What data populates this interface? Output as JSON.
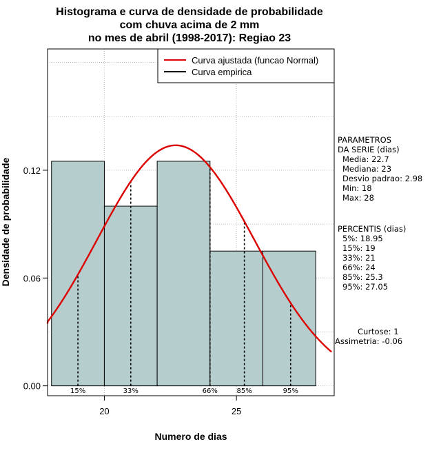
{
  "chart_data": {
    "type": "histogram",
    "title": [
      "Histograma e curva de densidade de probabilidade",
      "com chuva acima de 2 mm",
      "no mes de abril (1998-2017): Regiao 23"
    ],
    "xlabel": "Numero de dias",
    "ylabel": "Densidade de probabilidade",
    "xlim": [
      17.85,
      28.7
    ],
    "ylim": [
      -0.0055,
      0.1875
    ],
    "xticks": [
      20,
      25
    ],
    "yticks": [
      0.0,
      0.06,
      0.12
    ],
    "ytick_labels": [
      "0.00",
      "0.06",
      "0.12"
    ],
    "grid": true,
    "bins": [
      {
        "x0": 18,
        "x1": 20,
        "density": 0.125
      },
      {
        "x0": 20,
        "x1": 22,
        "density": 0.1
      },
      {
        "x0": 22,
        "x1": 24,
        "density": 0.125
      },
      {
        "x0": 24,
        "x1": 26,
        "density": 0.075
      },
      {
        "x0": 26,
        "x1": 28,
        "density": 0.075
      }
    ],
    "bar_color": "#b5cdcd",
    "fit_curve": {
      "name": "Curva ajustada (funcao Normal)",
      "distribution": "normal",
      "mean": 22.7,
      "sd": 2.98,
      "color": "#dd0000"
    },
    "empirical_curve": {
      "name": "Curva empirica",
      "color": "#000000"
    },
    "percentile_markers": [
      {
        "label": "15%",
        "x": 19
      },
      {
        "label": "33%",
        "x": 21
      },
      {
        "label": "66%",
        "x": 24
      },
      {
        "label": "85%",
        "x": 25.3
      },
      {
        "label": "95%",
        "x": 27.05
      }
    ],
    "legend_position": "top-right"
  },
  "side_panel": {
    "params_lines": [
      "PARAMETROS",
      "DA SERIE (dias)",
      "Media: 22.7",
      "Mediana: 23",
      "Desvio padrao: 2.98",
      "Min: 18",
      "Max: 28"
    ],
    "percentis_lines": [
      "PERCENTIS (dias)",
      "5%: 18.95",
      "15%: 19",
      "33%: 21",
      "66%: 24",
      "85%: 25.3",
      "95%: 27.05"
    ],
    "curtose": "Curtose: 1",
    "assimetria": "Assimetria: -0.06"
  }
}
